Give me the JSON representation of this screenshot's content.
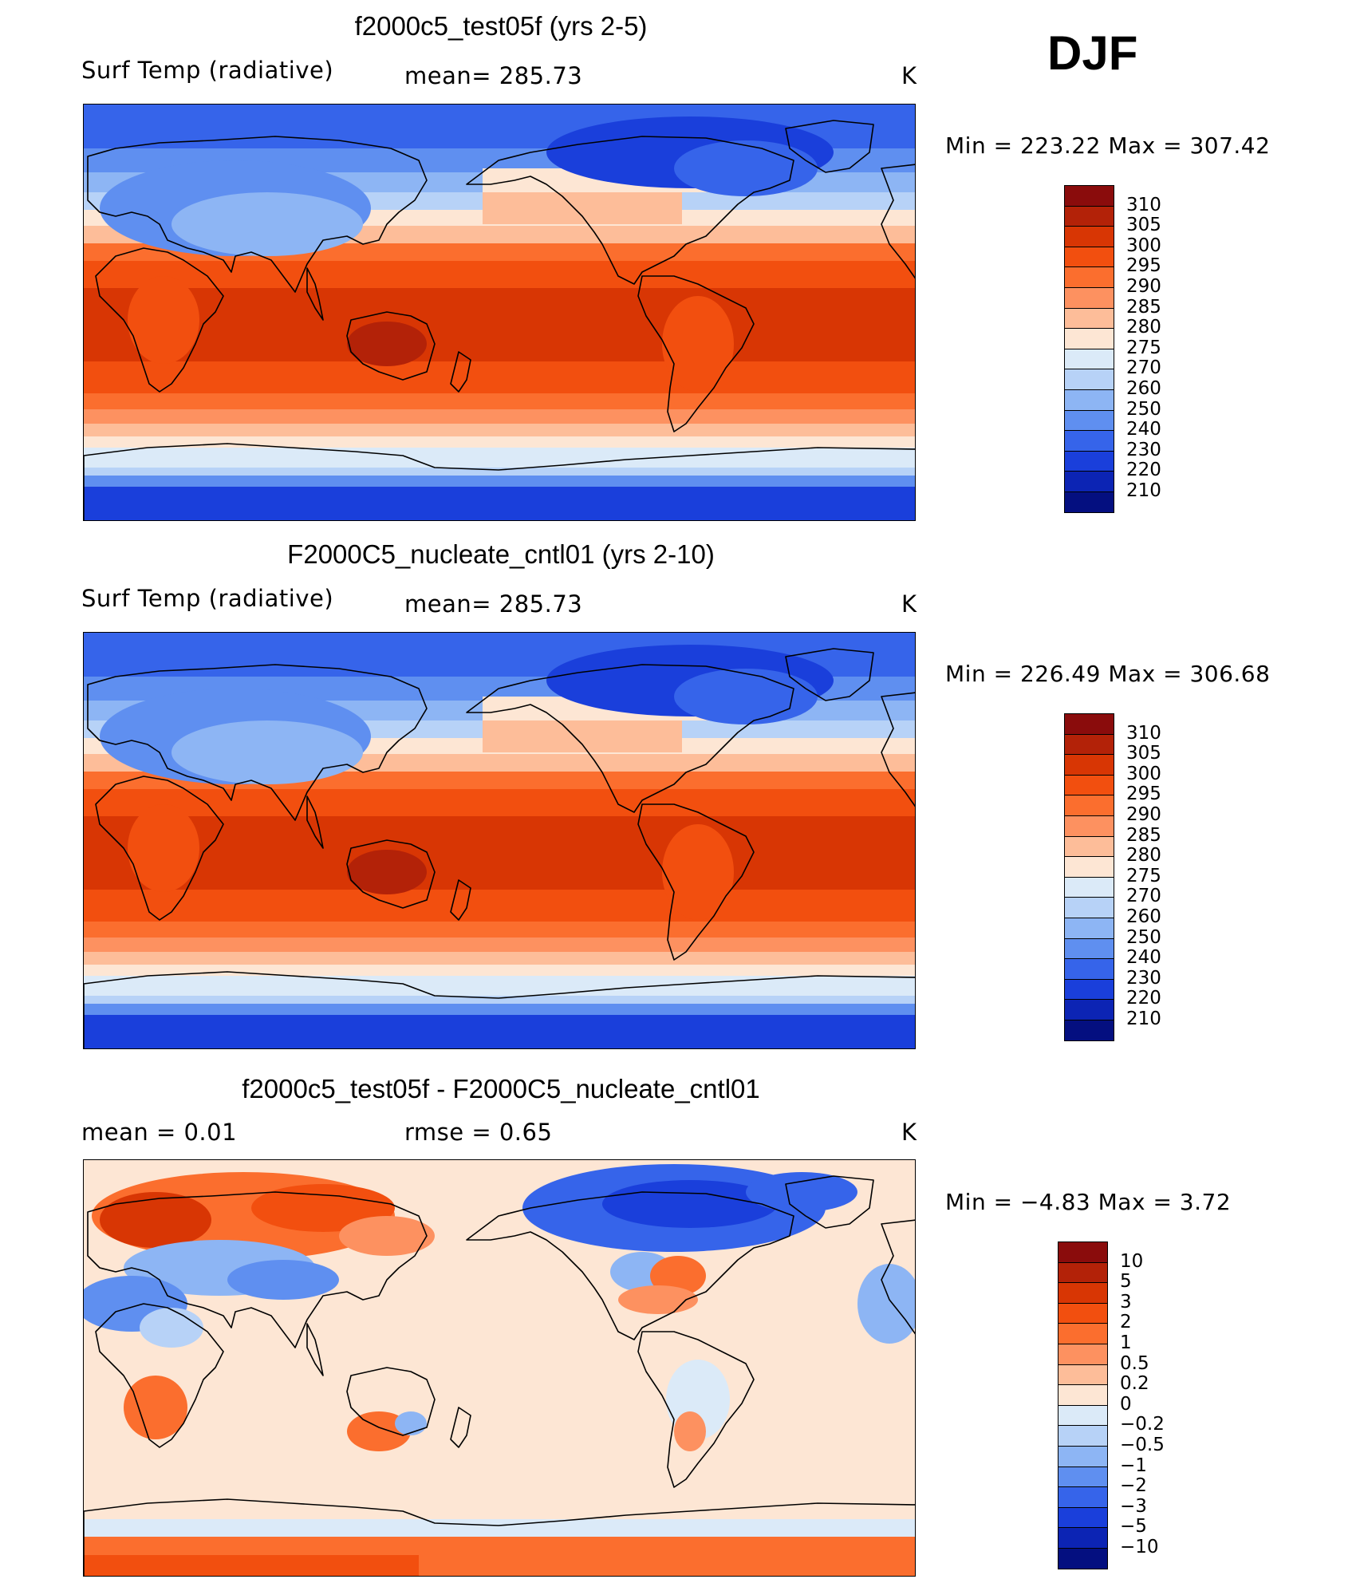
{
  "season": "DJF",
  "panels": [
    {
      "title": "f2000c5_test05f (yrs 2-5)",
      "left_label": "Surf Temp (radiative)",
      "center_label": "mean=  285.73",
      "units": "K",
      "minmax": "Min  =  223.22  Max  =  307.42",
      "map_type": "absolute",
      "colorbar": {
        "labels": [
          "310",
          "305",
          "300",
          "295",
          "290",
          "285",
          "280",
          "275",
          "270",
          "260",
          "250",
          "240",
          "230",
          "220",
          "210"
        ],
        "colors": [
          "#8a0c0c",
          "#b32208",
          "#d83604",
          "#f24f0f",
          "#fb6e2e",
          "#fd9160",
          "#fdbd99",
          "#fde6d4",
          "#dbeaf8",
          "#b7d2f7",
          "#8db5f4",
          "#5f8ff0",
          "#3664ea",
          "#1a3fdb",
          "#0c24b4",
          "#040f80"
        ]
      }
    },
    {
      "title": "F2000C5_nucleate_cntl01 (yrs 2-10)",
      "left_label": "Surf Temp (radiative)",
      "center_label": "mean=  285.73",
      "units": "K",
      "minmax": "Min  =  226.49  Max  =  306.68",
      "map_type": "absolute",
      "colorbar": {
        "labels": [
          "310",
          "305",
          "300",
          "295",
          "290",
          "285",
          "280",
          "275",
          "270",
          "260",
          "250",
          "240",
          "230",
          "220",
          "210"
        ],
        "colors": [
          "#8a0c0c",
          "#b32208",
          "#d83604",
          "#f24f0f",
          "#fb6e2e",
          "#fd9160",
          "#fdbd99",
          "#fde6d4",
          "#dbeaf8",
          "#b7d2f7",
          "#8db5f4",
          "#5f8ff0",
          "#3664ea",
          "#1a3fdb",
          "#0c24b4",
          "#040f80"
        ]
      }
    },
    {
      "title": "f2000c5_test05f - F2000C5_nucleate_cntl01",
      "left_label": "mean  =       0.01",
      "center_label": "rmse  =      0.65",
      "units": "K",
      "minmax": "Min  =     −4.83  Max  =       3.72",
      "map_type": "difference",
      "colorbar": {
        "labels": [
          "10",
          "5",
          "3",
          "2",
          "1",
          "0.5",
          "0.2",
          "0",
          "−0.2",
          "−0.5",
          "−1",
          "−2",
          "−3",
          "−5",
          "−10"
        ],
        "colors": [
          "#8a0c0c",
          "#b32208",
          "#d83604",
          "#f24f0f",
          "#fb6e2e",
          "#fd9160",
          "#fdbd99",
          "#fde6d4",
          "#dbeaf8",
          "#b7d2f7",
          "#8db5f4",
          "#5f8ff0",
          "#3664ea",
          "#1a3fdb",
          "#0c24b4",
          "#040f80"
        ]
      }
    }
  ]
}
